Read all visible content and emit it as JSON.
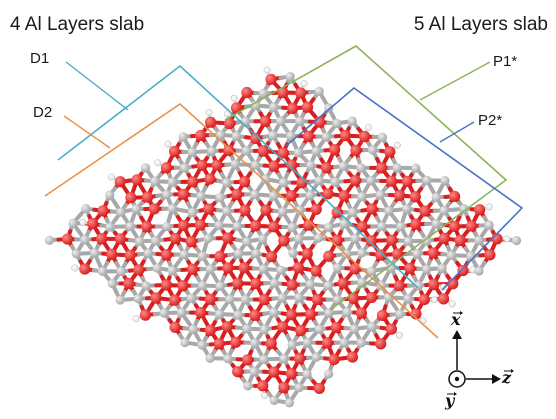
{
  "titles": {
    "left": "4 Al Layers slab",
    "right": "5 Al Layers slab"
  },
  "slabs": [
    {
      "id": "D1",
      "label": "D1",
      "color": "#4aaec6"
    },
    {
      "id": "D2",
      "label": "D2",
      "color": "#e8914a"
    },
    {
      "id": "P1",
      "label": "P1*",
      "color": "#8db35a"
    },
    {
      "id": "P2",
      "label": "P2*",
      "color": "#4a72c4"
    }
  ],
  "axes": {
    "up": "x",
    "right": "z",
    "out": "y"
  },
  "colors": {
    "oxygen": "#d81e1e",
    "aluminum": "#a8a8a8",
    "hydrogen": "#e4e4e4"
  }
}
